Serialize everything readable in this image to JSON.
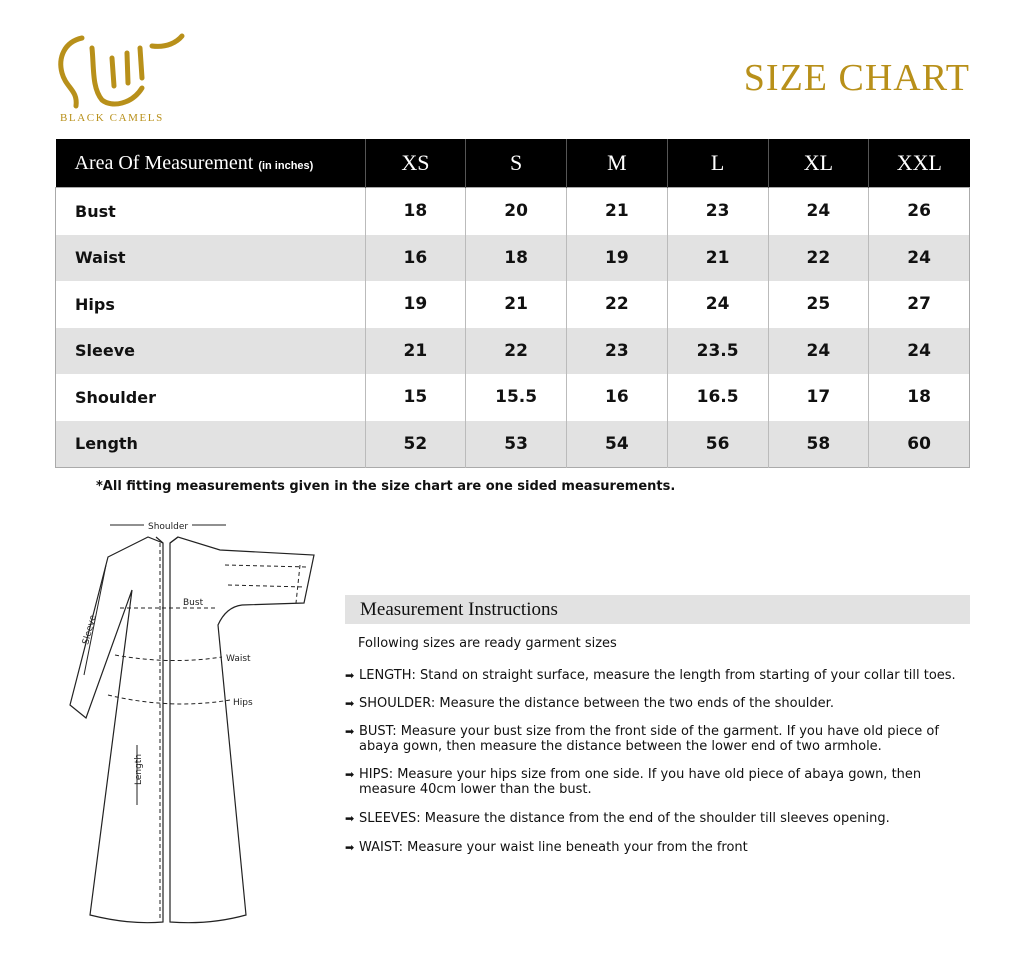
{
  "brand": {
    "name": "BLACK CAMELS",
    "color": "#b8901a"
  },
  "title": "SIZE CHART",
  "table": {
    "header_label": "Area Of Measurement",
    "header_unit": "(in inches)",
    "sizes": [
      "XS",
      "S",
      "M",
      "L",
      "XL",
      "XXL"
    ],
    "rows": [
      {
        "label": "Bust",
        "values": [
          "18",
          "20",
          "21",
          "23",
          "24",
          "26"
        ]
      },
      {
        "label": "Waist",
        "values": [
          "16",
          "18",
          "19",
          "21",
          "22",
          "24"
        ]
      },
      {
        "label": "Hips",
        "values": [
          "19",
          "21",
          "22",
          "24",
          "25",
          "27"
        ]
      },
      {
        "label": "Sleeve",
        "values": [
          "21",
          "22",
          "23",
          "23.5",
          "24",
          "24"
        ]
      },
      {
        "label": "Shoulder",
        "values": [
          "15",
          "15.5",
          "16",
          "16.5",
          "17",
          "18"
        ]
      },
      {
        "label": "Length",
        "values": [
          "52",
          "53",
          "54",
          "56",
          "58",
          "60"
        ]
      }
    ]
  },
  "note": "*All fitting measurements given in the size chart are one sided measurements.",
  "diagram": {
    "shoulder": "Shoulder",
    "bust": "Bust",
    "waist": "Waist",
    "hips": "Hips",
    "sleeve": "Sleeve",
    "length": "Length"
  },
  "instructions": {
    "heading": "Measurement Instructions",
    "subheading": "Following sizes are ready garment sizes",
    "items": [
      "LENGTH: Stand on straight surface, measure the length from starting of your collar till toes.",
      "SHOULDER: Measure the distance between the two ends of the shoulder.",
      "BUST: Measure your bust size from the front side of the garment. If you have old piece of abaya gown, then measure the distance between the lower end of two armhole.",
      "HIPS: Measure your hips size from one side. If you have old piece of abaya gown, then measure 40cm lower than the bust.",
      "SLEEVES: Measure the distance from the end of the shoulder till sleeves opening.",
      "WAIST: Measure your waist line beneath your from the front"
    ]
  }
}
